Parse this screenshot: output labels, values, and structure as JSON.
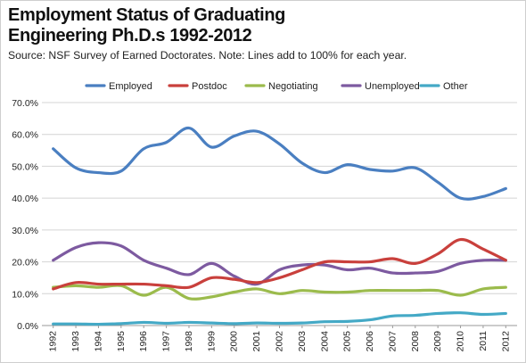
{
  "header": {
    "title_line1": "Employment Status of Graduating",
    "title_line2": "Engineering Ph.D.s 1992-2012",
    "source": "Source: NSF Survey of Earned Doctorates. Note: Lines add to 100% for each year."
  },
  "chart_data": {
    "type": "line",
    "title": "Employment Status of Graduating Engineering Ph.D.s 1992-2012",
    "subtitle": "Source: NSF Survey of Earned Doctorates. Note: Lines add to 100% for each year.",
    "xlabel": "",
    "ylabel": "",
    "ylim": [
      0,
      70
    ],
    "y_ticks": [
      "0.0%",
      "10.0%",
      "20.0%",
      "30.0%",
      "40.0%",
      "50.0%",
      "60.0%",
      "70.0%"
    ],
    "grid": "horizontal",
    "legend_position": "top",
    "x": [
      "1992",
      "1993",
      "1994",
      "1995",
      "1996",
      "1997",
      "1998",
      "1999",
      "2000",
      "2001",
      "2002",
      "2003",
      "2004",
      "2005",
      "2006",
      "2007",
      "2008",
      "2009",
      "2010",
      "2011",
      "2012"
    ],
    "series": [
      {
        "name": "Employed",
        "color": "#4a7fc1",
        "values": [
          55.5,
          49.5,
          48,
          48.5,
          55.5,
          57.5,
          62,
          56,
          59.5,
          61,
          57,
          51,
          48,
          50.5,
          49,
          48.5,
          49.5,
          45,
          40,
          40.5,
          43
        ]
      },
      {
        "name": "Postdoc",
        "color": "#c9403c",
        "values": [
          11.5,
          13.5,
          13,
          13,
          13,
          12.5,
          12,
          15,
          14.5,
          13.5,
          15,
          17.5,
          20,
          20,
          20,
          21,
          19.5,
          22.5,
          27,
          24,
          20.5
        ]
      },
      {
        "name": "Negotiating",
        "color": "#9bbb4c",
        "values": [
          12,
          12.5,
          12,
          12.5,
          9.5,
          12,
          8.5,
          9,
          10.5,
          11.5,
          10,
          11,
          10.5,
          10.5,
          11,
          11,
          11,
          11,
          9.5,
          11.5,
          12
        ]
      },
      {
        "name": "Unemployed",
        "color": "#7d5aa0",
        "values": [
          20.5,
          24.5,
          26,
          25,
          20.5,
          18,
          16,
          19.5,
          15.5,
          13,
          17.5,
          19,
          19,
          17.5,
          18,
          16.5,
          16.5,
          17,
          19.5,
          20.5,
          20.5
        ]
      },
      {
        "name": "Other",
        "color": "#44a9c6",
        "values": [
          0.5,
          0.5,
          0.4,
          0.6,
          1,
          0.7,
          1,
          0.8,
          0.6,
          0.8,
          0.7,
          0.8,
          1.2,
          1.3,
          1.8,
          3,
          3.2,
          3.8,
          4,
          3.5,
          3.8
        ]
      }
    ]
  }
}
